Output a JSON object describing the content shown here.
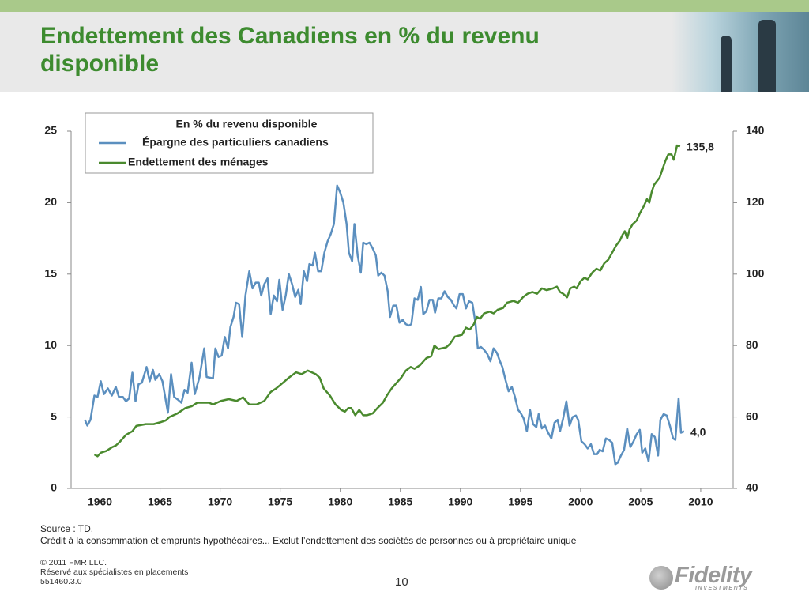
{
  "chart_data": {
    "type": "line",
    "title": "Endettement des Canadiens en % du revenu disponible",
    "legend_title": "En % du revenu disponible",
    "legend": "top-left",
    "source": "Source : TD.",
    "note": "Crédit à la consommation et emprunts hypothécaires... Exclut l’endettement des sociétés de personnes ou à propriétaire unique",
    "xlim": [
      1957.6,
      2012.7
    ],
    "xticks": [
      1960,
      1965,
      1970,
      1975,
      1980,
      1985,
      1990,
      1995,
      2000,
      2005,
      2010
    ],
    "ylim": [
      0,
      25
    ],
    "yticks": [
      0,
      5,
      10,
      15,
      20,
      25
    ],
    "y2lim": [
      40,
      140
    ],
    "y2ticks": [
      40,
      60,
      80,
      100,
      120,
      140
    ],
    "series": [
      {
        "name": "Épargne des particuliers canadiens",
        "color": "#5b8fbf",
        "axis": "y",
        "end_label": "4,0",
        "x": [
          1958.75,
          1958.95,
          1959.21,
          1959.54,
          1959.8,
          1960.07,
          1960.33,
          1960.66,
          1960.99,
          1961.32,
          1961.58,
          1961.91,
          1962.17,
          1962.43,
          1962.7,
          1962.96,
          1963.22,
          1963.49,
          1963.88,
          1964.14,
          1964.41,
          1964.61,
          1964.93,
          1965.2,
          1965.66,
          1965.92,
          1966.18,
          1966.51,
          1966.78,
          1967.04,
          1967.3,
          1967.63,
          1967.89,
          1968.29,
          1968.68,
          1968.88,
          1969.41,
          1969.61,
          1969.87,
          1970.13,
          1970.39,
          1970.66,
          1970.86,
          1971.12,
          1971.32,
          1971.58,
          1971.84,
          1972.11,
          1972.43,
          1972.7,
          1972.96,
          1973.22,
          1973.42,
          1973.68,
          1973.95,
          1974.21,
          1974.47,
          1974.74,
          1974.93,
          1975.2,
          1975.46,
          1975.72,
          1975.99,
          1976.25,
          1976.51,
          1976.71,
          1976.97,
          1977.24,
          1977.43,
          1977.7,
          1977.89,
          1978.16,
          1978.42,
          1978.68,
          1978.95,
          1979.21,
          1979.47,
          1979.74,
          1980.0,
          1980.26,
          1980.53,
          1980.72,
          1980.99,
          1981.18,
          1981.45,
          1981.71,
          1981.91,
          1982.17,
          1982.43,
          1982.7,
          1982.96,
          1983.16,
          1983.42,
          1983.68,
          1983.95,
          1984.14,
          1984.41,
          1984.67,
          1984.93,
          1985.2,
          1985.46,
          1985.72,
          1985.92,
          1986.18,
          1986.45,
          1986.71,
          1986.91,
          1987.17,
          1987.43,
          1987.7,
          1987.89,
          1988.16,
          1988.42,
          1988.68,
          1988.95,
          1989.21,
          1989.47,
          1989.67,
          1989.93,
          1990.2,
          1990.46,
          1990.72,
          1990.99,
          1991.25,
          1991.45,
          1991.71,
          1991.97,
          1992.24,
          1992.5,
          1992.76,
          1993.03,
          1993.29,
          1993.49,
          1993.75,
          1994.01,
          1994.28,
          1994.54,
          1994.8,
          1995.0,
          1995.26,
          1995.53,
          1995.79,
          1996.05,
          1996.32,
          1996.51,
          1996.78,
          1997.04,
          1997.3,
          1997.57,
          1997.83,
          1998.09,
          1998.29,
          1998.55,
          1998.82,
          1999.08,
          1999.34,
          1999.61,
          1999.8,
          2000.07,
          2000.33,
          2000.59,
          2000.86,
          2001.12,
          2001.38,
          2001.58,
          2001.84,
          2002.11,
          2002.37,
          2002.63,
          2002.89,
          2003.09,
          2003.36,
          2003.62,
          2003.88,
          2004.14,
          2004.41,
          2004.67,
          2004.93,
          2005.13,
          2005.39,
          2005.66,
          2005.92,
          2006.18,
          2006.45,
          2006.64,
          2006.91,
          2007.17,
          2007.43,
          2007.7,
          2007.89,
          2008.16,
          2008.36,
          2008.62
        ],
        "values": [
          4.8,
          4.4,
          4.8,
          6.5,
          6.4,
          7.5,
          6.6,
          7.0,
          6.5,
          7.1,
          6.4,
          6.4,
          6.1,
          6.3,
          8.1,
          6.1,
          7.3,
          7.4,
          8.5,
          7.5,
          8.3,
          7.6,
          8.0,
          7.5,
          5.3,
          8.0,
          6.4,
          6.2,
          6.0,
          6.9,
          6.7,
          8.8,
          6.6,
          7.8,
          9.8,
          7.8,
          7.7,
          9.8,
          9.2,
          9.3,
          10.6,
          9.8,
          11.3,
          12.0,
          13.0,
          12.9,
          10.6,
          13.5,
          15.2,
          14.0,
          14.4,
          14.4,
          13.5,
          14.3,
          14.7,
          12.2,
          13.5,
          13.1,
          14.6,
          12.5,
          13.5,
          15.0,
          14.3,
          13.4,
          13.9,
          12.9,
          15.2,
          14.5,
          15.7,
          15.6,
          16.5,
          15.2,
          15.2,
          16.5,
          17.3,
          17.8,
          18.5,
          21.2,
          20.7,
          20.0,
          18.5,
          16.5,
          15.9,
          18.5,
          16.3,
          15.1,
          17.2,
          17.1,
          17.2,
          16.8,
          16.3,
          14.9,
          15.1,
          14.9,
          13.8,
          12.0,
          12.8,
          12.8,
          11.6,
          11.8,
          11.5,
          11.4,
          11.5,
          13.3,
          13.2,
          14.1,
          12.2,
          12.4,
          13.2,
          13.2,
          12.3,
          13.3,
          13.3,
          13.8,
          13.4,
          13.2,
          12.8,
          12.6,
          13.6,
          13.6,
          12.6,
          13.1,
          13.0,
          11.6,
          9.8,
          9.9,
          9.7,
          9.4,
          8.9,
          9.8,
          9.5,
          8.9,
          8.5,
          7.6,
          6.8,
          7.1,
          6.4,
          5.5,
          5.3,
          4.9,
          4.0,
          5.5,
          4.5,
          4.3,
          5.2,
          4.2,
          4.4,
          3.9,
          3.5,
          4.6,
          4.8,
          4.0,
          4.9,
          6.1,
          4.4,
          5.0,
          5.1,
          4.8,
          3.3,
          3.1,
          2.8,
          3.1,
          2.4,
          2.4,
          2.7,
          2.6,
          3.5,
          3.4,
          3.2,
          1.7,
          1.8,
          2.3,
          2.7,
          4.2,
          2.9,
          3.3,
          3.8,
          4.1,
          2.5,
          2.8,
          1.9,
          3.8,
          3.6,
          2.3,
          4.8,
          5.2,
          5.1,
          4.4,
          3.5,
          3.4,
          6.3,
          3.9,
          4.0
        ]
      },
      {
        "name": "Endettement des ménages",
        "color": "#4a8a2e",
        "axis": "y2",
        "end_label": "135,8",
        "x": [
          1959.54,
          1959.8,
          1960.07,
          1960.53,
          1960.99,
          1961.32,
          1961.64,
          1962.17,
          1962.7,
          1963.03,
          1963.82,
          1964.47,
          1965.0,
          1965.46,
          1965.79,
          1966.45,
          1967.11,
          1967.63,
          1968.09,
          1969.08,
          1969.41,
          1970.07,
          1970.72,
          1971.38,
          1971.91,
          1972.43,
          1973.03,
          1973.68,
          1974.21,
          1974.67,
          1975.2,
          1975.72,
          1976.32,
          1976.78,
          1977.3,
          1977.63,
          1977.96,
          1978.29,
          1978.62,
          1979.14,
          1979.61,
          1980.07,
          1980.39,
          1980.66,
          1980.92,
          1981.25,
          1981.58,
          1981.91,
          1982.24,
          1982.7,
          1983.09,
          1983.55,
          1983.88,
          1984.28,
          1984.67,
          1985.07,
          1985.46,
          1985.86,
          1986.18,
          1986.64,
          1987.17,
          1987.57,
          1987.83,
          1988.16,
          1988.82,
          1989.14,
          1989.54,
          1990.13,
          1990.46,
          1990.79,
          1991.12,
          1991.38,
          1991.64,
          1991.97,
          1992.43,
          1992.76,
          1993.09,
          1993.55,
          1993.88,
          1994.41,
          1994.8,
          1995.2,
          1995.59,
          1995.99,
          1996.38,
          1996.78,
          1997.17,
          1997.7,
          1998.03,
          1998.29,
          1998.55,
          1998.88,
          1999.14,
          1999.47,
          1999.67,
          2000.0,
          2000.33,
          2000.59,
          2000.99,
          2001.32,
          2001.64,
          2001.97,
          2002.3,
          2002.63,
          2002.96,
          2003.29,
          2003.49,
          2003.68,
          2003.88,
          2004.08,
          2004.34,
          2004.67,
          2004.93,
          2005.26,
          2005.53,
          2005.72,
          2005.92,
          2006.12,
          2006.58,
          2006.78,
          2007.04,
          2007.3,
          2007.57,
          2007.76,
          2008.03,
          2008.29
        ],
        "values": [
          49.5,
          49.0,
          50.0,
          50.5,
          51.5,
          52.0,
          53.0,
          55.0,
          56.0,
          57.5,
          58.0,
          58.0,
          58.5,
          59.0,
          60.0,
          61.0,
          62.5,
          63.0,
          64.0,
          64.0,
          63.5,
          64.5,
          65.0,
          64.5,
          65.5,
          63.5,
          63.5,
          64.5,
          67.0,
          68.0,
          69.5,
          71.0,
          72.5,
          72.0,
          73.0,
          72.5,
          72.0,
          71.0,
          68.0,
          66.0,
          63.5,
          62.0,
          61.5,
          62.5,
          62.5,
          60.5,
          62.0,
          60.5,
          60.5,
          61.0,
          62.5,
          64.0,
          66.0,
          68.0,
          69.5,
          71.0,
          73.0,
          74.0,
          73.5,
          74.5,
          76.5,
          77.0,
          80.0,
          79.0,
          79.5,
          80.5,
          82.5,
          83.0,
          85.0,
          84.5,
          86.0,
          88.0,
          87.5,
          89.0,
          89.5,
          89.0,
          90.0,
          90.5,
          92.0,
          92.5,
          92.0,
          93.5,
          94.5,
          95.0,
          94.5,
          96.0,
          95.5,
          96.0,
          96.5,
          95.0,
          94.5,
          93.5,
          96.0,
          96.5,
          96.0,
          98.0,
          99.0,
          98.5,
          100.5,
          101.5,
          101.0,
          103.0,
          104.0,
          106.0,
          108.0,
          109.5,
          111.0,
          112.0,
          110.0,
          112.5,
          114.0,
          115.0,
          117.0,
          119.0,
          121.0,
          120.0,
          123.0,
          125.0,
          127.0,
          129.0,
          131.5,
          133.5,
          133.5,
          132.0,
          136.0,
          135.8
        ]
      }
    ]
  },
  "footer": {
    "copyright": "© 2011 FMR LLC.",
    "audience": "Réservé aux spécialistes en placements",
    "code": "551460.3.0",
    "page": "10",
    "logo": "Fidelity",
    "logo_sub": "INVESTMENTS"
  }
}
